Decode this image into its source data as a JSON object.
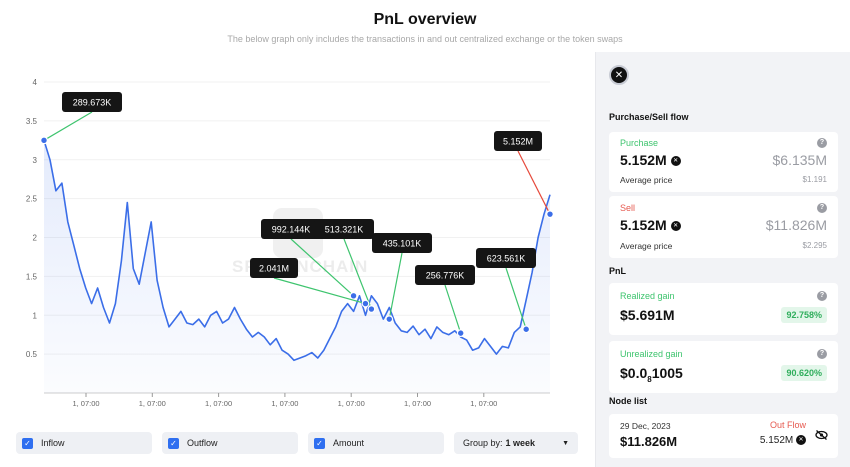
{
  "header": {
    "title": "PnL overview",
    "subtitle": "The below graph only includes the transactions in and out centralized exchange or the token swaps"
  },
  "chart_data": {
    "type": "area",
    "ylim": [
      0,
      4
    ],
    "yticks": [
      "0.5",
      "1",
      "1.5",
      "2",
      "2.5",
      "3",
      "3.5",
      "4"
    ],
    "xticks": [
      "1, 07:00",
      "1, 07:00",
      "1, 07:00",
      "1, 07:00",
      "1, 07:00",
      "1, 07:00",
      "1, 07:00"
    ],
    "color": "#3b6ee8",
    "series": [
      {
        "values": [
          3.25,
          3.0,
          2.6,
          2.7,
          2.2,
          1.9,
          1.6,
          1.35,
          1.15,
          1.35,
          1.1,
          0.9,
          1.15,
          1.7,
          2.45,
          1.6,
          1.4,
          1.8,
          2.2,
          1.45,
          1.1,
          0.85,
          0.95,
          1.05,
          0.9,
          0.88,
          0.95,
          0.85,
          1.0,
          1.05,
          0.9,
          0.95,
          1.1,
          0.95,
          0.82,
          0.72,
          0.78,
          0.72,
          0.62,
          0.7,
          0.55,
          0.5,
          0.42,
          0.45,
          0.48,
          0.52,
          0.45,
          0.55,
          0.7,
          0.85,
          1.05,
          1.15,
          1.05,
          1.25,
          1.0,
          1.25,
          1.15,
          0.95,
          1.1,
          0.9,
          0.8,
          0.78,
          0.86,
          0.75,
          0.82,
          0.7,
          0.85,
          0.78,
          0.75,
          0.8,
          0.72,
          0.68,
          0.55,
          0.58,
          0.7,
          0.6,
          0.5,
          0.6,
          0.58,
          0.78,
          0.85,
          1.2,
          1.55,
          2.0,
          2.3,
          2.55
        ]
      }
    ],
    "annotations": [
      {
        "label": "289.673K",
        "value": 3.25
      },
      {
        "label": "5.152M",
        "value": 2.3
      },
      {
        "label": "992.144K",
        "value": 1.25
      },
      {
        "label": "513.321K",
        "value": 1.08
      },
      {
        "label": "2.041M",
        "value": 1.15
      },
      {
        "label": "435.101K",
        "value": 0.95
      },
      {
        "label": "256.776K",
        "value": 0.77
      },
      {
        "label": "623.561K",
        "value": 0.82
      }
    ],
    "watermark": "SPOTONCHAIN"
  },
  "controls": {
    "inflow": "Inflow",
    "outflow": "Outflow",
    "amount": "Amount",
    "group_by_label": "Group by:",
    "group_by_value": "1 week"
  },
  "panel": {
    "token_icon": "x-token-icon",
    "purchase_sell_title": "Purchase/Sell flow",
    "purchase": {
      "label": "Purchase",
      "amount": "5.152M",
      "usd": "$6.135M",
      "avg_label": "Average price",
      "avg_value": "$1.191"
    },
    "sell": {
      "label": "Sell",
      "amount": "5.152M",
      "usd": "$11.826M",
      "avg_label": "Average price",
      "avg_value": "$2.295"
    },
    "pnl_title": "PnL",
    "realized": {
      "label": "Realized gain",
      "value": "$5.691M",
      "pct": "92.758%"
    },
    "unrealized": {
      "label": "Unrealized gain",
      "value_main": "$0.0",
      "value_sub": "8",
      "value_tail": "1005",
      "pct": "90.620%"
    },
    "node_list_title": "Node list",
    "node": {
      "date": "29 Dec, 2023",
      "type": "Out Flow",
      "usd": "$11.826M",
      "amount": "5.152M"
    }
  }
}
